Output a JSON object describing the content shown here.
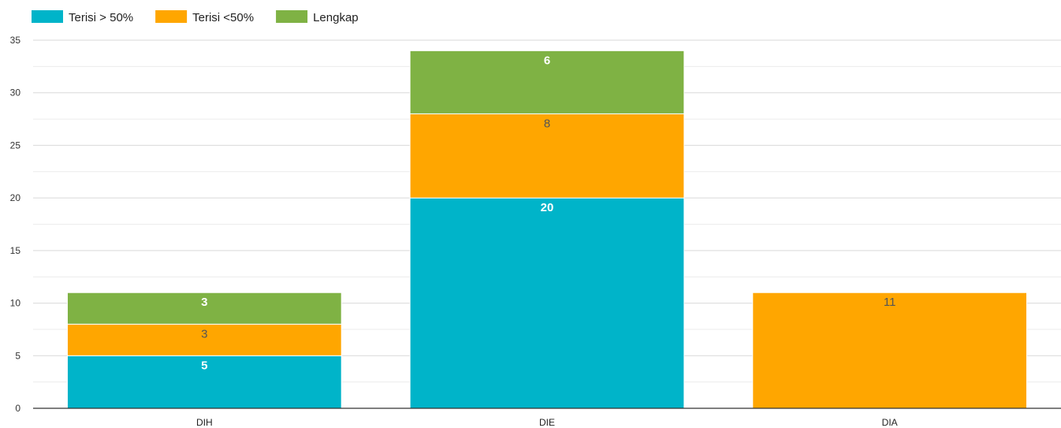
{
  "chart_data": {
    "type": "bar",
    "stacked": true,
    "categories": [
      "DIH",
      "DIE",
      "DIA"
    ],
    "series": [
      {
        "name": "Terisi > 50%",
        "color": "#00b4c9",
        "label_color": "#ffffff",
        "label_bold": true,
        "values": [
          5,
          20,
          0
        ]
      },
      {
        "name": "Terisi <50%",
        "color": "#ffa600",
        "label_color": "#555555",
        "label_bold": false,
        "values": [
          3,
          8,
          11
        ]
      },
      {
        "name": "Lengkap",
        "color": "#7fb244",
        "label_color": "#ffffff",
        "label_bold": true,
        "values": [
          3,
          6,
          0
        ]
      }
    ],
    "ylim": [
      0,
      35
    ],
    "yticks": [
      0,
      5,
      10,
      15,
      20,
      25,
      30,
      35
    ],
    "ytick_labels": [
      "0",
      "5",
      "10",
      "15",
      "20",
      "25",
      "30",
      "35"
    ],
    "grid": true,
    "legend_position": "top-left",
    "title": "",
    "xlabel": "",
    "ylabel": ""
  }
}
